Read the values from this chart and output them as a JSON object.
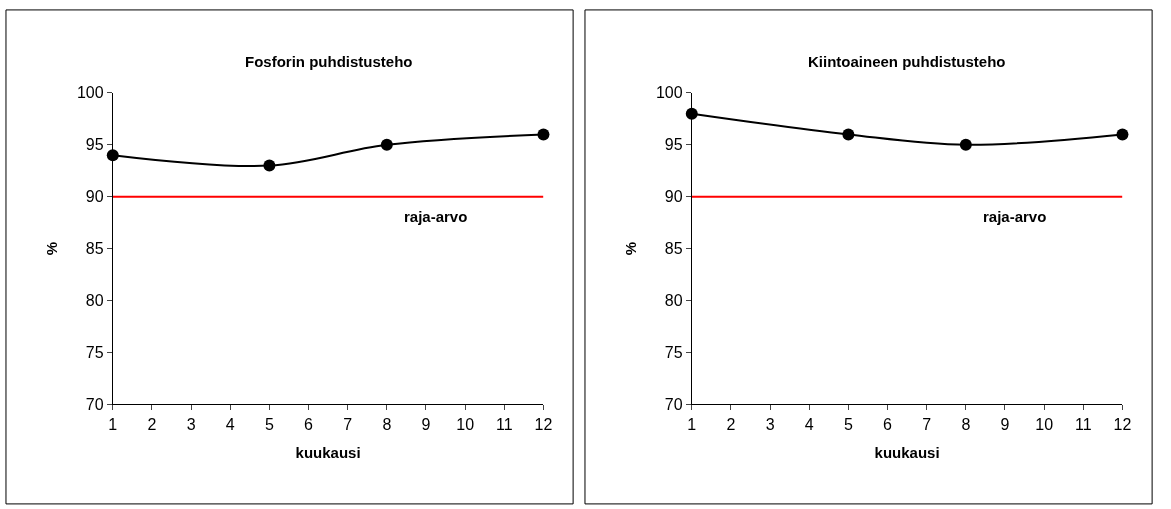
{
  "chart_data": [
    {
      "type": "line",
      "title": "Fosforin puhdistusteho",
      "xlabel": "kuukausi",
      "ylabel": "%",
      "x": [
        1,
        5,
        8,
        12
      ],
      "series": [
        {
          "color": "#000000",
          "values": [
            94,
            93,
            95,
            96
          ]
        }
      ],
      "xlim": [
        1,
        12
      ],
      "xticks": [
        1,
        2,
        3,
        4,
        5,
        6,
        7,
        8,
        9,
        10,
        11,
        12
      ],
      "ylim": [
        70,
        100
      ],
      "yticks": [
        70,
        75,
        80,
        85,
        90,
        95,
        100
      ],
      "ref_lines": [
        {
          "axis": "y",
          "value": 90,
          "label": "raja-arvo",
          "color": "#ff0000"
        }
      ],
      "marker": "circle",
      "line_style": "solid"
    },
    {
      "type": "line",
      "title": "Kiintoaineen puhdistusteho",
      "xlabel": "kuukausi",
      "ylabel": "%",
      "x": [
        1,
        5,
        8,
        12
      ],
      "series": [
        {
          "color": "#000000",
          "values": [
            98,
            96,
            95,
            96
          ]
        }
      ],
      "xlim": [
        1,
        12
      ],
      "xticks": [
        1,
        2,
        3,
        4,
        5,
        6,
        7,
        8,
        9,
        10,
        11,
        12
      ],
      "ylim": [
        70,
        100
      ],
      "yticks": [
        70,
        75,
        80,
        85,
        90,
        95,
        100
      ],
      "ref_lines": [
        {
          "axis": "y",
          "value": 90,
          "label": "raja-arvo",
          "color": "#ff0000"
        }
      ],
      "marker": "circle",
      "line_style": "solid"
    }
  ]
}
